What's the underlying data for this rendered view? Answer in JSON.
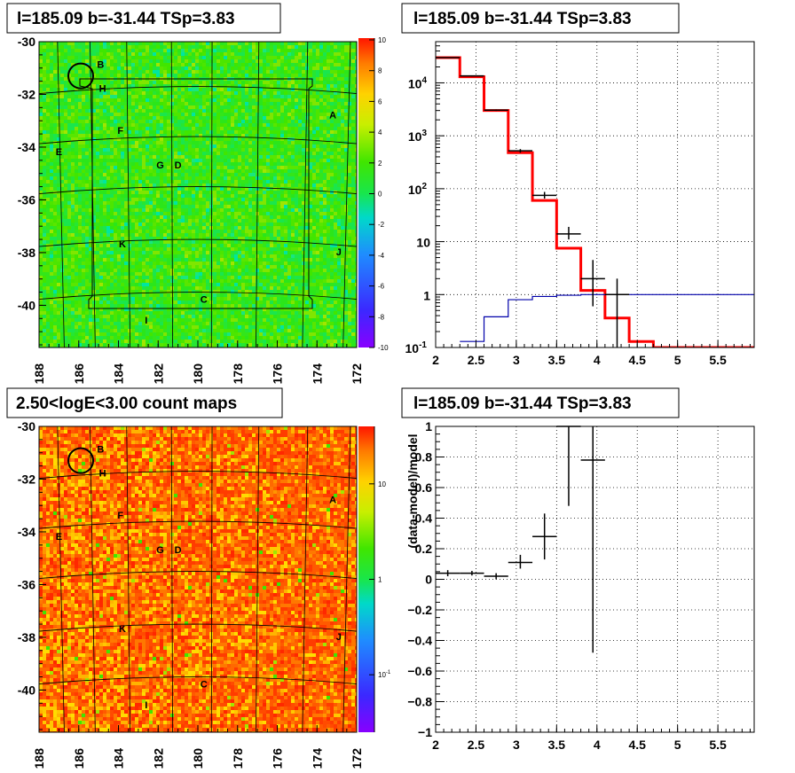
{
  "panels": {
    "top_left_title": "l=185.09 b=-31.44 TSp=3.83",
    "top_right_title": "l=185.09 b=-31.44 TSp=3.83",
    "bottom_left_title": "2.50<logE<3.00 count maps",
    "bottom_right_title": "l=185.09 b=-31.44 TSp=3.83"
  },
  "colors": {
    "model_line": "#ff0000",
    "background_line": "#0000aa",
    "data_marks": "#000000"
  },
  "chart_data": [
    {
      "type": "heatmap",
      "name": "residual-map",
      "title": "l=185.09 b=-31.44 TSp=3.83",
      "x_ticks": [
        188,
        186,
        184,
        182,
        180,
        178,
        176,
        174,
        172
      ],
      "y_ticks": [
        -30,
        -32,
        -34,
        -36,
        -38,
        -40
      ],
      "xlim": [
        188,
        172
      ],
      "ylim": [
        -41.6,
        -30
      ],
      "colorbar": {
        "range": [
          -10,
          10
        ],
        "ticks": [
          10,
          8,
          6,
          4,
          2,
          0,
          -2,
          -4,
          -6,
          -8,
          -10
        ]
      },
      "dominant_value": 0,
      "source_labels": [
        {
          "text": "B",
          "l": 184.9,
          "b": -31.0
        },
        {
          "text": "H",
          "l": 184.8,
          "b": -31.9
        },
        {
          "text": "A",
          "l": 173.2,
          "b": -32.9
        },
        {
          "text": "F",
          "l": 183.9,
          "b": -33.5
        },
        {
          "text": "E",
          "l": 187.0,
          "b": -34.3
        },
        {
          "text": "G",
          "l": 181.9,
          "b": -34.8
        },
        {
          "text": "D",
          "l": 181.0,
          "b": -34.8
        },
        {
          "text": "K",
          "l": 183.8,
          "b": -37.8
        },
        {
          "text": "J",
          "l": 172.9,
          "b": -38.1
        },
        {
          "text": "C",
          "l": 179.7,
          "b": -39.9
        },
        {
          "text": "I",
          "l": 182.6,
          "b": -40.7
        }
      ],
      "circle": {
        "l": 185.9,
        "b": -31.3
      }
    },
    {
      "type": "line",
      "name": "spectrum",
      "title": "l=185.09 b=-31.44 TSp=3.83",
      "x_ticks": [
        2,
        2.5,
        3,
        3.5,
        4,
        4.5,
        5,
        5.5
      ],
      "y_scale": "log",
      "y_ticks": [
        "10^-1",
        "1",
        "10",
        "10^2",
        "10^3",
        "10^4"
      ],
      "xlim": [
        2,
        5.95
      ],
      "ylim": [
        0.1,
        60000
      ],
      "grid": true,
      "series": [
        {
          "role": "model",
          "edges": [
            2,
            2.3,
            2.6,
            2.9,
            3.2,
            3.5,
            3.8,
            4.1,
            4.4,
            4.7,
            5.0,
            5.3,
            5.6,
            5.95
          ],
          "values": [
            30000,
            13000,
            3000,
            480,
            60,
            7.5,
            1.2,
            0.36,
            0.13,
            0.1,
            0.1,
            0.1,
            0.1
          ]
        },
        {
          "role": "background",
          "edges": [
            2.3,
            2.6,
            2.9,
            3.2,
            3.5,
            3.8,
            4.1,
            4.4,
            4.7,
            5.0,
            5.3,
            5.6,
            5.95
          ],
          "values": [
            0.13,
            0.38,
            0.8,
            0.92,
            0.97,
            1.0,
            1.0,
            1.0,
            1.0,
            1.0,
            1.0,
            1.0
          ]
        },
        {
          "role": "data",
          "points": [
            {
              "x": 2.15,
              "xerr": 0.15,
              "y": 30000,
              "ylo": 29500,
              "yhi": 30500
            },
            {
              "x": 2.45,
              "xerr": 0.15,
              "y": 13500,
              "ylo": 13200,
              "yhi": 13800
            },
            {
              "x": 2.75,
              "xerr": 0.15,
              "y": 3050,
              "ylo": 2950,
              "yhi": 3150
            },
            {
              "x": 3.05,
              "xerr": 0.15,
              "y": 520,
              "ylo": 480,
              "yhi": 560
            },
            {
              "x": 3.35,
              "xerr": 0.15,
              "y": 75,
              "ylo": 65,
              "yhi": 87
            },
            {
              "x": 3.65,
              "xerr": 0.15,
              "y": 14,
              "ylo": 11,
              "yhi": 19
            },
            {
              "x": 3.95,
              "xerr": 0.15,
              "y": 2,
              "ylo": 0.6,
              "yhi": 4.5
            },
            {
              "x": 4.25,
              "xerr": 0.15,
              "y": 1,
              "ylo": 0.1,
              "yhi": 2
            }
          ]
        }
      ]
    },
    {
      "type": "heatmap",
      "name": "count-map",
      "title": "2.50<logE<3.00 count maps",
      "x_ticks": [
        188,
        186,
        184,
        182,
        180,
        178,
        176,
        174,
        172
      ],
      "y_ticks": [
        -30,
        -32,
        -34,
        -36,
        -38,
        -40
      ],
      "xlim": [
        188,
        172
      ],
      "ylim": [
        -41.6,
        -30
      ],
      "colorbar": {
        "scale": "log",
        "range": [
          0.025,
          40
        ],
        "ticks": [
          "10",
          "1",
          "10^-1"
        ]
      },
      "source_labels": [
        {
          "text": "B",
          "l": 184.9,
          "b": -31.0
        },
        {
          "text": "H",
          "l": 184.8,
          "b": -31.9
        },
        {
          "text": "A",
          "l": 173.2,
          "b": -32.9
        },
        {
          "text": "F",
          "l": 183.9,
          "b": -33.5
        },
        {
          "text": "E",
          "l": 187.0,
          "b": -34.3
        },
        {
          "text": "G",
          "l": 181.9,
          "b": -34.8
        },
        {
          "text": "D",
          "l": 181.0,
          "b": -34.8
        },
        {
          "text": "K",
          "l": 183.8,
          "b": -37.8
        },
        {
          "text": "J",
          "l": 172.9,
          "b": -38.1
        },
        {
          "text": "C",
          "l": 179.7,
          "b": -39.9
        },
        {
          "text": "I",
          "l": 182.6,
          "b": -40.7
        }
      ],
      "circle": {
        "l": 185.9,
        "b": -31.3
      }
    },
    {
      "type": "scatter",
      "name": "residuals",
      "title": "l=185.09 b=-31.44 TSp=3.83",
      "ylabel": "(data-model)/model",
      "x_ticks": [
        2,
        2.5,
        3,
        3.5,
        4,
        4.5,
        5,
        5.5
      ],
      "y_ticks": [
        1,
        0.8,
        0.6,
        0.4,
        0.2,
        0,
        -0.2,
        -0.4,
        -0.6,
        -0.8,
        -1
      ],
      "xlim": [
        2,
        5.95
      ],
      "ylim": [
        -1,
        1
      ],
      "grid": true,
      "points": [
        {
          "x": 2.15,
          "xerr": 0.15,
          "y": 0.04,
          "ylo": 0.02,
          "yhi": 0.06
        },
        {
          "x": 2.45,
          "xerr": 0.15,
          "y": 0.04,
          "ylo": 0.025,
          "yhi": 0.055
        },
        {
          "x": 2.75,
          "xerr": 0.15,
          "y": 0.02,
          "ylo": 0.0,
          "yhi": 0.04
        },
        {
          "x": 3.05,
          "xerr": 0.15,
          "y": 0.11,
          "ylo": 0.07,
          "yhi": 0.16
        },
        {
          "x": 3.35,
          "xerr": 0.15,
          "y": 0.28,
          "ylo": 0.13,
          "yhi": 0.43
        },
        {
          "x": 3.65,
          "xerr": 0.15,
          "y": 1.0,
          "ylo": 0.48,
          "yhi": 1.0
        },
        {
          "x": 3.95,
          "xerr": 0.15,
          "y": 0.78,
          "ylo": -0.48,
          "yhi": 1.0
        }
      ]
    }
  ]
}
